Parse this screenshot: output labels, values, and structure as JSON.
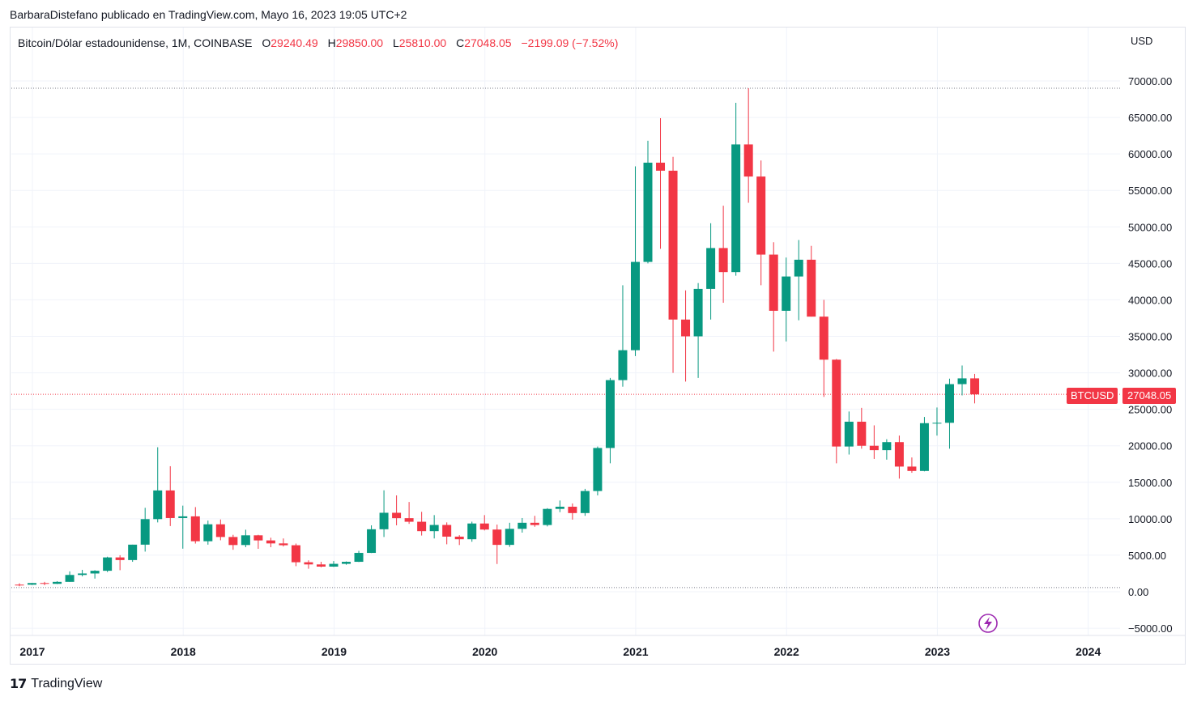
{
  "header": {
    "publisher_line": "BarbaraDistefano publicado en TradingView.com, Mayo 16, 2023 19:05 UTC+2"
  },
  "legend": {
    "symbol": "Bitcoin/Dólar estadounidense, 1M, COINBASE",
    "open_label": "O",
    "open": "29240.49",
    "high_label": "H",
    "high": "29850.00",
    "low_label": "L",
    "low": "25810.00",
    "close_label": "C",
    "close": "27048.05",
    "change": "−2199.09 (−7.52%)"
  },
  "price_axis": {
    "currency": "USD",
    "ticker": "BTCUSD",
    "last_price": "27048.05"
  },
  "footer": {
    "brand": "TradingView"
  },
  "colors": {
    "up": "#089981",
    "down": "#f23645",
    "grid": "#f0f3fa",
    "axis_text": "#131722",
    "lightning": "#9c27b0"
  },
  "chart_data": {
    "type": "candlestick",
    "interval": "1M",
    "y_ticks": [
      70000,
      65000,
      60000,
      55000,
      50000,
      45000,
      40000,
      35000,
      30000,
      25000,
      20000,
      15000,
      10000,
      5000,
      0,
      -5000
    ],
    "y_tick_labels": [
      "70000.00",
      "65000.00",
      "60000.00",
      "55000.00",
      "50000.00",
      "45000.00",
      "40000.00",
      "35000.00",
      "30000.00",
      "25000.00",
      "20000.00",
      "15000.00",
      "10000.00",
      "5000.00",
      "0.00",
      "−5000.00"
    ],
    "x_labels": [
      "2017",
      "2018",
      "2019",
      "2020",
      "2021",
      "2022",
      "2023",
      "2024"
    ],
    "ylim": [
      -5000,
      75000
    ],
    "reference_lines": [
      69000,
      27048.05,
      570
    ],
    "candles": [
      {
        "date": "2017-01",
        "o": 970,
        "h": 1150,
        "l": 750,
        "c": 960
      },
      {
        "date": "2017-02",
        "o": 960,
        "h": 1200,
        "l": 920,
        "c": 1190
      },
      {
        "date": "2017-03",
        "o": 1190,
        "h": 1350,
        "l": 890,
        "c": 1080
      },
      {
        "date": "2017-04",
        "o": 1080,
        "h": 1450,
        "l": 1050,
        "c": 1350
      },
      {
        "date": "2017-05",
        "o": 1350,
        "h": 2790,
        "l": 1350,
        "c": 2300
      },
      {
        "date": "2017-06",
        "o": 2300,
        "h": 3000,
        "l": 2100,
        "c": 2500
      },
      {
        "date": "2017-07",
        "o": 2500,
        "h": 2950,
        "l": 1800,
        "c": 2870
      },
      {
        "date": "2017-08",
        "o": 2870,
        "h": 4800,
        "l": 2700,
        "c": 4700
      },
      {
        "date": "2017-09",
        "o": 4700,
        "h": 5000,
        "l": 2950,
        "c": 4340
      },
      {
        "date": "2017-10",
        "o": 4340,
        "h": 6450,
        "l": 4100,
        "c": 6450
      },
      {
        "date": "2017-11",
        "o": 6450,
        "h": 11500,
        "l": 5500,
        "c": 9950
      },
      {
        "date": "2017-12",
        "o": 9950,
        "h": 19800,
        "l": 9500,
        "c": 13880
      },
      {
        "date": "2018-01",
        "o": 13880,
        "h": 17200,
        "l": 9000,
        "c": 10100
      },
      {
        "date": "2018-02",
        "o": 10100,
        "h": 11800,
        "l": 5900,
        "c": 10330
      },
      {
        "date": "2018-03",
        "o": 10330,
        "h": 11600,
        "l": 6600,
        "c": 6920
      },
      {
        "date": "2018-04",
        "o": 6920,
        "h": 9750,
        "l": 6450,
        "c": 9240
      },
      {
        "date": "2018-05",
        "o": 9240,
        "h": 9900,
        "l": 7050,
        "c": 7500
      },
      {
        "date": "2018-06",
        "o": 7500,
        "h": 7800,
        "l": 5750,
        "c": 6400
      },
      {
        "date": "2018-07",
        "o": 6400,
        "h": 8500,
        "l": 6100,
        "c": 7730
      },
      {
        "date": "2018-08",
        "o": 7730,
        "h": 7800,
        "l": 5880,
        "c": 7030
      },
      {
        "date": "2018-09",
        "o": 7030,
        "h": 7400,
        "l": 6100,
        "c": 6620
      },
      {
        "date": "2018-10",
        "o": 6620,
        "h": 7300,
        "l": 6200,
        "c": 6370
      },
      {
        "date": "2018-11",
        "o": 6370,
        "h": 6600,
        "l": 3500,
        "c": 4040
      },
      {
        "date": "2018-12",
        "o": 4040,
        "h": 4300,
        "l": 3150,
        "c": 3740
      },
      {
        "date": "2019-01",
        "o": 3740,
        "h": 4100,
        "l": 3350,
        "c": 3440
      },
      {
        "date": "2019-02",
        "o": 3440,
        "h": 4200,
        "l": 3400,
        "c": 3820
      },
      {
        "date": "2019-03",
        "o": 3820,
        "h": 4150,
        "l": 3700,
        "c": 4100
      },
      {
        "date": "2019-04",
        "o": 4100,
        "h": 5600,
        "l": 4070,
        "c": 5320
      },
      {
        "date": "2019-05",
        "o": 5320,
        "h": 9100,
        "l": 5300,
        "c": 8560
      },
      {
        "date": "2019-06",
        "o": 8560,
        "h": 13900,
        "l": 7500,
        "c": 10820
      },
      {
        "date": "2019-07",
        "o": 10820,
        "h": 13200,
        "l": 9100,
        "c": 10080
      },
      {
        "date": "2019-08",
        "o": 10080,
        "h": 12300,
        "l": 9300,
        "c": 9590
      },
      {
        "date": "2019-09",
        "o": 9590,
        "h": 10950,
        "l": 7700,
        "c": 8300
      },
      {
        "date": "2019-10",
        "o": 8300,
        "h": 10500,
        "l": 7300,
        "c": 9150
      },
      {
        "date": "2019-11",
        "o": 9150,
        "h": 9500,
        "l": 6500,
        "c": 7550
      },
      {
        "date": "2019-12",
        "o": 7550,
        "h": 7750,
        "l": 6400,
        "c": 7190
      },
      {
        "date": "2020-01",
        "o": 7190,
        "h": 9600,
        "l": 6850,
        "c": 9350
      },
      {
        "date": "2020-02",
        "o": 9350,
        "h": 10500,
        "l": 8400,
        "c": 8520
      },
      {
        "date": "2020-03",
        "o": 8520,
        "h": 9200,
        "l": 3800,
        "c": 6420
      },
      {
        "date": "2020-04",
        "o": 6420,
        "h": 9450,
        "l": 6150,
        "c": 8620
      },
      {
        "date": "2020-05",
        "o": 8620,
        "h": 10100,
        "l": 8100,
        "c": 9450
      },
      {
        "date": "2020-06",
        "o": 9450,
        "h": 10400,
        "l": 8900,
        "c": 9140
      },
      {
        "date": "2020-07",
        "o": 9140,
        "h": 11450,
        "l": 8950,
        "c": 11350
      },
      {
        "date": "2020-08",
        "o": 11350,
        "h": 12500,
        "l": 10900,
        "c": 11650
      },
      {
        "date": "2020-09",
        "o": 11650,
        "h": 12100,
        "l": 9880,
        "c": 10780
      },
      {
        "date": "2020-10",
        "o": 10780,
        "h": 14100,
        "l": 10400,
        "c": 13800
      },
      {
        "date": "2020-11",
        "o": 13800,
        "h": 19900,
        "l": 13200,
        "c": 19700
      },
      {
        "date": "2020-12",
        "o": 19700,
        "h": 29300,
        "l": 17600,
        "c": 29000
      },
      {
        "date": "2021-01",
        "o": 29000,
        "h": 42000,
        "l": 28100,
        "c": 33100
      },
      {
        "date": "2021-02",
        "o": 33100,
        "h": 58300,
        "l": 32300,
        "c": 45200
      },
      {
        "date": "2021-03",
        "o": 45200,
        "h": 61800,
        "l": 45000,
        "c": 58800
      },
      {
        "date": "2021-04",
        "o": 58800,
        "h": 64900,
        "l": 47000,
        "c": 57700
      },
      {
        "date": "2021-05",
        "o": 57700,
        "h": 59600,
        "l": 30000,
        "c": 37300
      },
      {
        "date": "2021-06",
        "o": 37300,
        "h": 41300,
        "l": 28800,
        "c": 35000
      },
      {
        "date": "2021-07",
        "o": 35000,
        "h": 42300,
        "l": 29300,
        "c": 41500
      },
      {
        "date": "2021-08",
        "o": 41500,
        "h": 50500,
        "l": 37300,
        "c": 47100
      },
      {
        "date": "2021-09",
        "o": 47100,
        "h": 52900,
        "l": 39600,
        "c": 43800
      },
      {
        "date": "2021-10",
        "o": 43800,
        "h": 67000,
        "l": 43300,
        "c": 61300
      },
      {
        "date": "2021-11",
        "o": 61300,
        "h": 69000,
        "l": 53300,
        "c": 56900
      },
      {
        "date": "2021-12",
        "o": 56900,
        "h": 59100,
        "l": 42000,
        "c": 46200
      },
      {
        "date": "2022-01",
        "o": 46200,
        "h": 47900,
        "l": 32900,
        "c": 38500
      },
      {
        "date": "2022-02",
        "o": 38500,
        "h": 45800,
        "l": 34300,
        "c": 43200
      },
      {
        "date": "2022-03",
        "o": 43200,
        "h": 48200,
        "l": 37200,
        "c": 45500
      },
      {
        "date": "2022-04",
        "o": 45500,
        "h": 47400,
        "l": 37700,
        "c": 37700
      },
      {
        "date": "2022-05",
        "o": 37700,
        "h": 40000,
        "l": 26700,
        "c": 31800
      },
      {
        "date": "2022-06",
        "o": 31800,
        "h": 31900,
        "l": 17600,
        "c": 19900
      },
      {
        "date": "2022-07",
        "o": 19900,
        "h": 24700,
        "l": 18800,
        "c": 23300
      },
      {
        "date": "2022-08",
        "o": 23300,
        "h": 25200,
        "l": 19600,
        "c": 20000
      },
      {
        "date": "2022-09",
        "o": 20000,
        "h": 22800,
        "l": 18200,
        "c": 19400
      },
      {
        "date": "2022-10",
        "o": 19400,
        "h": 20900,
        "l": 18100,
        "c": 20500
      },
      {
        "date": "2022-11",
        "o": 20500,
        "h": 21400,
        "l": 15500,
        "c": 17150
      },
      {
        "date": "2022-12",
        "o": 17150,
        "h": 18400,
        "l": 16300,
        "c": 16550
      },
      {
        "date": "2023-01",
        "o": 16550,
        "h": 23950,
        "l": 16500,
        "c": 23100
      },
      {
        "date": "2023-02",
        "o": 23100,
        "h": 25250,
        "l": 21400,
        "c": 23150
      },
      {
        "date": "2023-03",
        "o": 23150,
        "h": 29200,
        "l": 19600,
        "c": 28450
      },
      {
        "date": "2023-04",
        "o": 28450,
        "h": 31000,
        "l": 26900,
        "c": 29240
      },
      {
        "date": "2023-05",
        "o": 29240.49,
        "h": 29850,
        "l": 25810,
        "c": 27048.05
      }
    ]
  }
}
